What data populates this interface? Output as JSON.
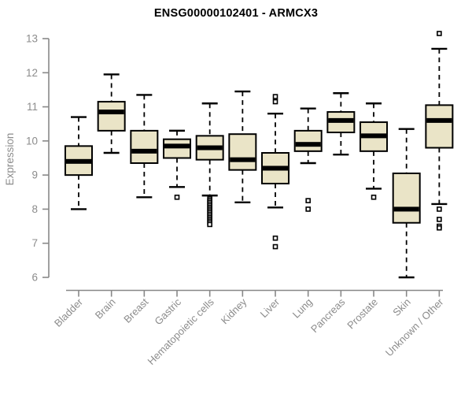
{
  "chart_data": {
    "type": "boxplot",
    "title": "ENSG00000102401 - ARMCX3",
    "xlabel": "",
    "ylabel": "Expression",
    "ylim": [
      6,
      13
    ],
    "yticks": [
      6,
      7,
      8,
      9,
      10,
      11,
      12,
      13
    ],
    "grid": "off",
    "legend": "none",
    "categories": [
      "Bladder",
      "Brain",
      "Breast",
      "Gastric",
      "Hematopoietic cells",
      "Kidney",
      "Liver",
      "Lung",
      "Pancreas",
      "Prostate",
      "Skin",
      "Unknown / Other"
    ],
    "series": [
      {
        "category": "Bladder",
        "low": 8.0,
        "q1": 9.0,
        "median": 9.4,
        "q3": 9.85,
        "high": 10.7,
        "outliers": []
      },
      {
        "category": "Brain",
        "low": 9.65,
        "q1": 10.3,
        "median": 10.85,
        "q3": 11.15,
        "high": 11.95,
        "outliers": []
      },
      {
        "category": "Breast",
        "low": 8.35,
        "q1": 9.35,
        "median": 9.7,
        "q3": 10.3,
        "high": 11.35,
        "outliers": []
      },
      {
        "category": "Gastric",
        "low": 8.65,
        "q1": 9.5,
        "median": 9.85,
        "q3": 10.05,
        "high": 10.3,
        "outliers": [
          8.35
        ]
      },
      {
        "category": "Hematopoietic cells",
        "low": 8.4,
        "q1": 9.45,
        "median": 9.8,
        "q3": 10.15,
        "high": 11.1,
        "outliers": [
          8.3,
          8.25,
          8.2,
          8.15,
          8.1,
          8.05,
          8.0,
          7.95,
          7.9,
          7.85,
          7.8,
          7.75,
          7.7,
          7.65,
          7.6,
          7.55
        ]
      },
      {
        "category": "Kidney",
        "low": 8.2,
        "q1": 9.15,
        "median": 9.45,
        "q3": 10.2,
        "high": 11.45,
        "outliers": []
      },
      {
        "category": "Liver",
        "low": 8.05,
        "q1": 8.75,
        "median": 9.2,
        "q3": 9.65,
        "high": 10.8,
        "outliers": [
          11.3,
          11.15,
          7.15,
          6.9
        ]
      },
      {
        "category": "Lung",
        "low": 9.35,
        "q1": 9.7,
        "median": 9.9,
        "q3": 10.3,
        "high": 10.95,
        "outliers": [
          8.25,
          8.0
        ]
      },
      {
        "category": "Pancreas",
        "low": 9.6,
        "q1": 10.25,
        "median": 10.6,
        "q3": 10.85,
        "high": 11.4,
        "outliers": []
      },
      {
        "category": "Prostate",
        "low": 8.6,
        "q1": 9.7,
        "median": 10.15,
        "q3": 10.55,
        "high": 11.1,
        "outliers": [
          8.35
        ]
      },
      {
        "category": "Skin",
        "low": 6.0,
        "q1": 7.6,
        "median": 8.0,
        "q3": 9.05,
        "high": 10.35,
        "outliers": []
      },
      {
        "category": "Unknown / Other",
        "low": 8.15,
        "q1": 9.8,
        "median": 10.6,
        "q3": 11.05,
        "high": 12.7,
        "outliers": [
          13.15,
          8.0,
          7.7,
          7.5,
          7.45
        ]
      }
    ]
  },
  "style": {
    "background": "#ffffff",
    "box_fill": "#eae4c7",
    "box_stroke": "#000000",
    "median_color": "#000000",
    "whisker_color": "#000000",
    "outlier_fill": "#ffffff",
    "outlier_stroke": "#000000",
    "axis_color": "#888888",
    "tick_label_color": "#8c8c8c",
    "title_color": "#000000"
  }
}
